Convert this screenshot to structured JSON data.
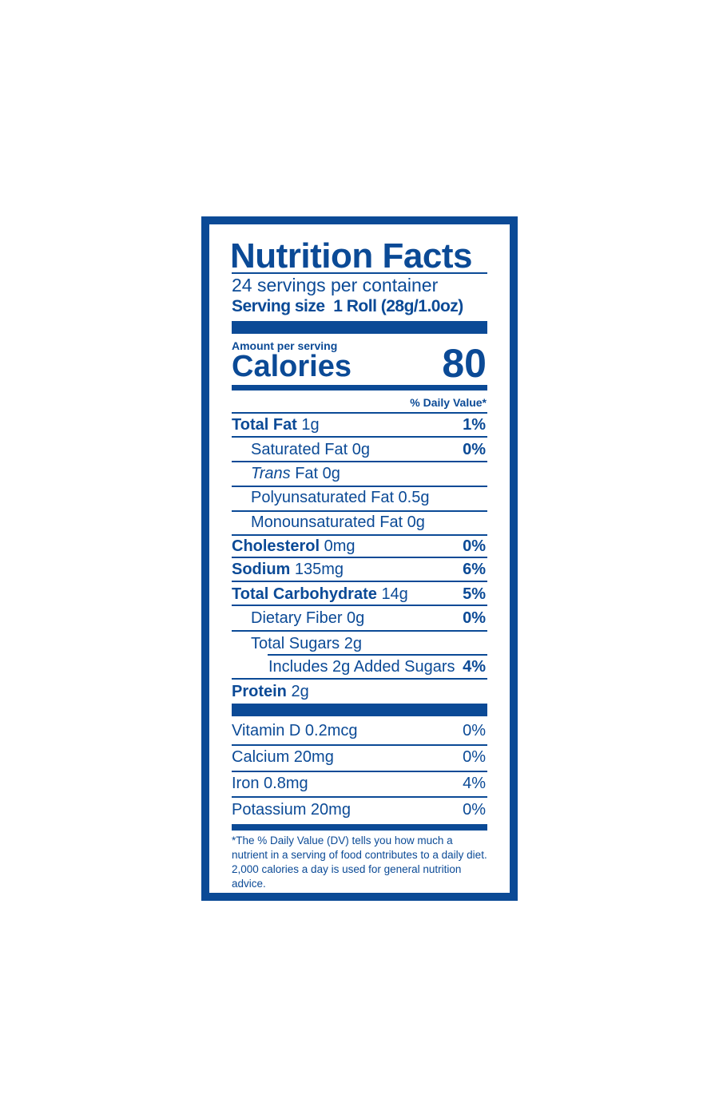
{
  "title": "Nutrition Facts",
  "servings": "24 servings per container",
  "serving_size": {
    "label": "Serving size",
    "value": "1 Roll (28g/1.0oz)"
  },
  "amount_per_serving": "Amount per serving",
  "calories": {
    "label": "Calories",
    "value": "80"
  },
  "daily_value_header": "% Daily Value*",
  "nutrients": [
    {
      "name": "Total Fat",
      "amount": "1g",
      "dv": "1%"
    },
    {
      "name": "Saturated Fat 0g",
      "dv": "0%"
    },
    {
      "prefix": "Trans",
      "name": "Fat 0g"
    },
    {
      "name": "Polyunsaturated Fat 0.5g"
    },
    {
      "name": "Monounsaturated Fat 0g"
    },
    {
      "name": "Cholesterol",
      "amount": "0mg",
      "dv": "0%"
    },
    {
      "name": "Sodium",
      "amount": "135mg",
      "dv": "6%"
    },
    {
      "name": "Total Carbohydrate",
      "amount": "14g",
      "dv": "5%"
    },
    {
      "name": "Dietary Fiber 0g",
      "dv": "0%"
    },
    {
      "name": "Total Sugars 2g"
    },
    {
      "name": "Includes 2g Added Sugars",
      "dv": "4%"
    },
    {
      "name": "Protein",
      "amount": "2g"
    }
  ],
  "vitamins": [
    {
      "name": "Vitamin D 0.2mcg",
      "dv": "0%"
    },
    {
      "name": "Calcium 20mg",
      "dv": "0%"
    },
    {
      "name": "Iron 0.8mg",
      "dv": "4%"
    },
    {
      "name": "Potassium 20mg",
      "dv": "0%"
    }
  ],
  "footnote": "*The % Daily Value (DV) tells you how much a nutrient in a serving of food contributes to a daily diet. 2,000 calories a day is used for general nutrition advice."
}
